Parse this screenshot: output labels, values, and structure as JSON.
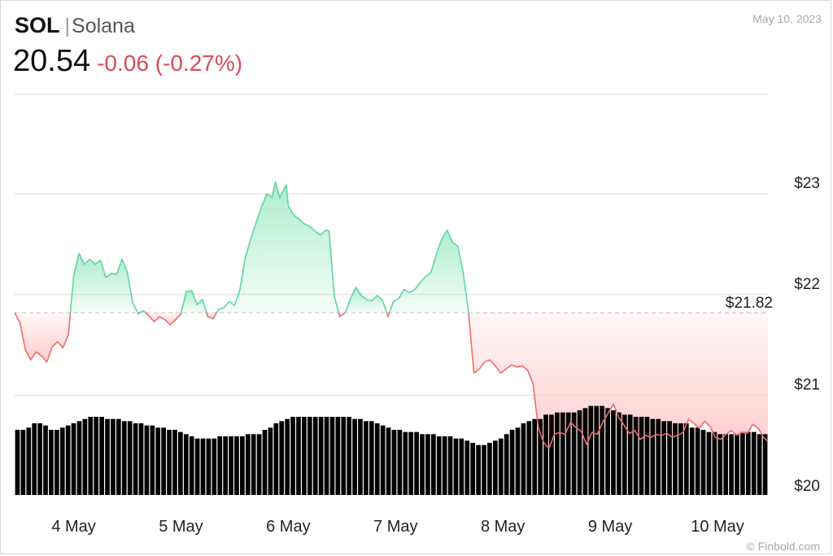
{
  "header": {
    "symbol": "SOL",
    "separator": "|",
    "name": "Solana",
    "price": "20.54",
    "change": "-0.06 (-0.27%)",
    "date": "May 10, 2023",
    "watermark": "© Finbold.com"
  },
  "colors": {
    "up_line": "#5fd6a0",
    "up_fill": "#a9ecca",
    "down_line": "#ee6b6b",
    "down_fill": "#ffc7c7",
    "volume": "#000000",
    "grid": "#dcdcdc",
    "reference": "#c8c8c8"
  },
  "chart_data": {
    "type": "area",
    "reference_value": 21.82,
    "reference_label": "$21.82",
    "ylim": [
      20,
      24
    ],
    "yticks": [
      {
        "value": 20,
        "label": "$20"
      },
      {
        "value": 21,
        "label": "$21"
      },
      {
        "value": 22,
        "label": "$22"
      },
      {
        "value": 23,
        "label": "$23"
      }
    ],
    "xticks": [
      {
        "x": 4,
        "label": "4 May"
      },
      {
        "x": 5,
        "label": "5 May"
      },
      {
        "x": 6,
        "label": "6 May"
      },
      {
        "x": 7,
        "label": "7 May"
      },
      {
        "x": 8,
        "label": "8 May"
      },
      {
        "x": 9,
        "label": "9 May"
      },
      {
        "x": 10,
        "label": "10 May"
      }
    ],
    "xlim": [
      3.45,
      10.47
    ],
    "grid": true,
    "price_series": [
      [
        3.45,
        21.82
      ],
      [
        3.5,
        21.72
      ],
      [
        3.55,
        21.45
      ],
      [
        3.6,
        21.35
      ],
      [
        3.65,
        21.43
      ],
      [
        3.7,
        21.39
      ],
      [
        3.75,
        21.33
      ],
      [
        3.8,
        21.48
      ],
      [
        3.85,
        21.53
      ],
      [
        3.9,
        21.47
      ],
      [
        3.95,
        21.6
      ],
      [
        4.0,
        22.18
      ],
      [
        4.05,
        22.41
      ],
      [
        4.1,
        22.3
      ],
      [
        4.15,
        22.35
      ],
      [
        4.2,
        22.3
      ],
      [
        4.25,
        22.34
      ],
      [
        4.3,
        22.17
      ],
      [
        4.35,
        22.21
      ],
      [
        4.4,
        22.2
      ],
      [
        4.45,
        22.35
      ],
      [
        4.5,
        22.22
      ],
      [
        4.55,
        21.92
      ],
      [
        4.6,
        21.81
      ],
      [
        4.65,
        21.84
      ],
      [
        4.7,
        21.79
      ],
      [
        4.75,
        21.73
      ],
      [
        4.8,
        21.78
      ],
      [
        4.85,
        21.75
      ],
      [
        4.9,
        21.7
      ],
      [
        4.95,
        21.75
      ],
      [
        5.0,
        21.81
      ],
      [
        5.05,
        22.03
      ],
      [
        5.1,
        22.04
      ],
      [
        5.15,
        21.9
      ],
      [
        5.2,
        21.95
      ],
      [
        5.25,
        21.78
      ],
      [
        5.3,
        21.76
      ],
      [
        5.35,
        21.85
      ],
      [
        5.4,
        21.87
      ],
      [
        5.45,
        21.93
      ],
      [
        5.5,
        21.89
      ],
      [
        5.55,
        22.05
      ],
      [
        5.6,
        22.37
      ],
      [
        5.65,
        22.55
      ],
      [
        5.75,
        22.87
      ],
      [
        5.8,
        23.0
      ],
      [
        5.85,
        22.97
      ],
      [
        5.88,
        23.12
      ],
      [
        5.92,
        22.96
      ],
      [
        5.98,
        23.09
      ],
      [
        6.0,
        22.88
      ],
      [
        6.05,
        22.79
      ],
      [
        6.1,
        22.75
      ],
      [
        6.15,
        22.7
      ],
      [
        6.2,
        22.68
      ],
      [
        6.25,
        22.63
      ],
      [
        6.3,
        22.59
      ],
      [
        6.35,
        22.64
      ],
      [
        6.38,
        22.63
      ],
      [
        6.43,
        21.98
      ],
      [
        6.48,
        21.78
      ],
      [
        6.53,
        21.82
      ],
      [
        6.58,
        21.96
      ],
      [
        6.63,
        22.07
      ],
      [
        6.68,
        21.99
      ],
      [
        6.73,
        21.95
      ],
      [
        6.78,
        21.94
      ],
      [
        6.83,
        21.99
      ],
      [
        6.88,
        21.94
      ],
      [
        6.93,
        21.78
      ],
      [
        6.98,
        21.93
      ],
      [
        7.03,
        21.96
      ],
      [
        7.08,
        22.05
      ],
      [
        7.13,
        22.02
      ],
      [
        7.18,
        22.05
      ],
      [
        7.23,
        22.12
      ],
      [
        7.28,
        22.18
      ],
      [
        7.33,
        22.22
      ],
      [
        7.38,
        22.4
      ],
      [
        7.43,
        22.55
      ],
      [
        7.48,
        22.64
      ],
      [
        7.53,
        22.52
      ],
      [
        7.58,
        22.48
      ],
      [
        7.63,
        22.22
      ],
      [
        7.68,
        21.82
      ],
      [
        7.73,
        21.22
      ],
      [
        7.78,
        21.26
      ],
      [
        7.83,
        21.33
      ],
      [
        7.88,
        21.35
      ],
      [
        7.93,
        21.29
      ],
      [
        7.98,
        21.22
      ],
      [
        8.03,
        21.26
      ],
      [
        8.08,
        21.3
      ],
      [
        8.13,
        21.28
      ],
      [
        8.18,
        21.29
      ],
      [
        8.23,
        21.25
      ],
      [
        8.28,
        21.12
      ],
      [
        8.33,
        20.68
      ],
      [
        8.38,
        20.53
      ],
      [
        8.43,
        20.47
      ],
      [
        8.48,
        20.61
      ],
      [
        8.53,
        20.63
      ],
      [
        8.58,
        20.61
      ],
      [
        8.63,
        20.73
      ],
      [
        8.68,
        20.68
      ],
      [
        8.73,
        20.64
      ],
      [
        8.78,
        20.51
      ],
      [
        8.83,
        20.63
      ],
      [
        8.88,
        20.61
      ],
      [
        8.93,
        20.73
      ],
      [
        8.98,
        20.82
      ],
      [
        9.03,
        20.91
      ],
      [
        9.08,
        20.78
      ],
      [
        9.13,
        20.7
      ],
      [
        9.18,
        20.62
      ],
      [
        9.23,
        20.65
      ],
      [
        9.28,
        20.56
      ],
      [
        9.33,
        20.6
      ],
      [
        9.38,
        20.58
      ],
      [
        9.43,
        20.61
      ],
      [
        9.48,
        20.6
      ],
      [
        9.53,
        20.62
      ],
      [
        9.58,
        20.58
      ],
      [
        9.63,
        20.6
      ],
      [
        9.68,
        20.63
      ],
      [
        9.73,
        20.76
      ],
      [
        9.78,
        20.72
      ],
      [
        9.83,
        20.67
      ],
      [
        9.88,
        20.74
      ],
      [
        9.93,
        20.69
      ],
      [
        9.98,
        20.58
      ],
      [
        10.03,
        20.56
      ],
      [
        10.08,
        20.61
      ],
      [
        10.13,
        20.65
      ],
      [
        10.18,
        20.6
      ],
      [
        10.23,
        20.63
      ],
      [
        10.28,
        20.62
      ],
      [
        10.33,
        20.71
      ],
      [
        10.38,
        20.67
      ],
      [
        10.43,
        20.58
      ],
      [
        10.47,
        20.54
      ]
    ],
    "volume": [
      0.3,
      0.3,
      0.31,
      0.33,
      0.33,
      0.32,
      0.3,
      0.3,
      0.31,
      0.32,
      0.33,
      0.34,
      0.35,
      0.36,
      0.36,
      0.36,
      0.35,
      0.35,
      0.35,
      0.34,
      0.34,
      0.33,
      0.33,
      0.32,
      0.32,
      0.31,
      0.31,
      0.3,
      0.3,
      0.29,
      0.28,
      0.27,
      0.26,
      0.26,
      0.26,
      0.26,
      0.27,
      0.27,
      0.27,
      0.27,
      0.27,
      0.28,
      0.28,
      0.28,
      0.3,
      0.31,
      0.33,
      0.34,
      0.35,
      0.36,
      0.36,
      0.36,
      0.36,
      0.36,
      0.36,
      0.36,
      0.36,
      0.36,
      0.36,
      0.36,
      0.35,
      0.35,
      0.34,
      0.34,
      0.33,
      0.32,
      0.31,
      0.3,
      0.3,
      0.29,
      0.29,
      0.29,
      0.28,
      0.28,
      0.28,
      0.27,
      0.27,
      0.27,
      0.26,
      0.26,
      0.25,
      0.24,
      0.23,
      0.23,
      0.24,
      0.25,
      0.26,
      0.28,
      0.3,
      0.31,
      0.33,
      0.34,
      0.35,
      0.35,
      0.37,
      0.37,
      0.38,
      0.38,
      0.38,
      0.38,
      0.39,
      0.4,
      0.41,
      0.41,
      0.41,
      0.4,
      0.39,
      0.38,
      0.37,
      0.37,
      0.36,
      0.36,
      0.36,
      0.35,
      0.35,
      0.34,
      0.34,
      0.33,
      0.33,
      0.33,
      0.31,
      0.31,
      0.3,
      0.29,
      0.29,
      0.28,
      0.28,
      0.28,
      0.28,
      0.29,
      0.29,
      0.29,
      0.28,
      0.28
    ]
  }
}
